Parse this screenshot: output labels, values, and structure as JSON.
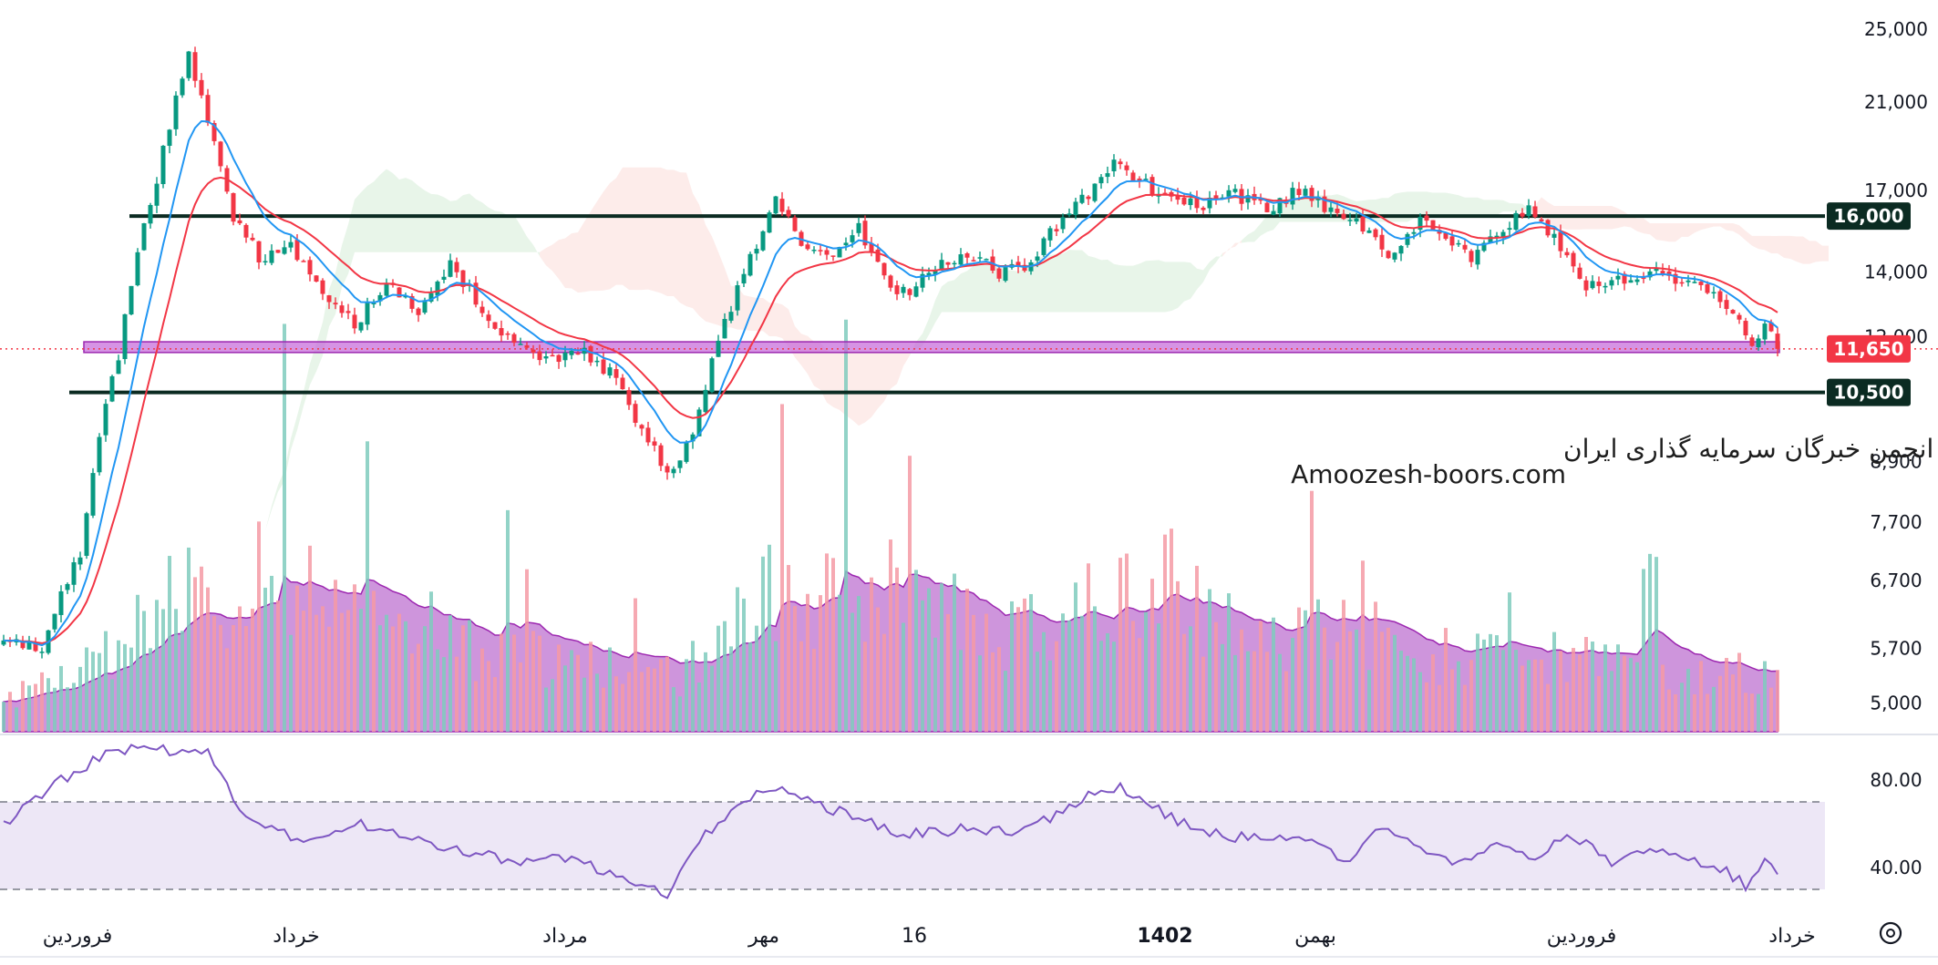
{
  "chart_data": {
    "type": "candlestick",
    "price_axis": {
      "scale": "log",
      "range": [
        4700,
        26000
      ],
      "ticks": [
        "25,000",
        "21,000",
        "17,000",
        "14,000",
        "12,000",
        "8,900",
        "7,700",
        "6,700",
        "5,700",
        "5,000"
      ],
      "tick_values": [
        25000,
        21000,
        17000,
        14000,
        12000,
        8900,
        7700,
        6700,
        5700,
        5000
      ]
    },
    "rsi_axis": {
      "range": [
        20,
        100
      ],
      "ticks": [
        "80.00",
        "40.00"
      ],
      "tick_values": [
        80,
        40
      ],
      "band": [
        30,
        70
      ]
    },
    "time_axis": {
      "labels": [
        "فروردین",
        "خرداد",
        "مرداد",
        "مهر",
        "16",
        "1402",
        "بهمن",
        "فروردین",
        "خرداد"
      ],
      "bold": [
        false,
        false,
        false,
        false,
        false,
        true,
        false,
        false,
        false
      ]
    },
    "levels": [
      {
        "label": "16,000",
        "value": 16000,
        "color": "#0b2b22"
      },
      {
        "label": "10,500",
        "value": 10500,
        "color": "#0b2b22"
      }
    ],
    "zone": {
      "low": 11550,
      "high": 11850,
      "color": "#c465d8"
    },
    "last_price": {
      "label": "11,650",
      "value": 11650,
      "color": "#f23645"
    },
    "colors": {
      "up": "#089981",
      "down": "#f23645",
      "ma_fast": "#2196f3",
      "ma_slow": "#f23645",
      "volume_ma_fill": "#b45cc9",
      "rsi": "#7e57c2",
      "rsi_band": "#ede7f6",
      "cloud_bull": "#e8f5e9",
      "cloud_bear": "#fdecea"
    },
    "anchors": [
      [
        0,
        5800
      ],
      [
        6,
        5650
      ],
      [
        12,
        7200
      ],
      [
        18,
        11500
      ],
      [
        24,
        17500
      ],
      [
        29,
        23500
      ],
      [
        32,
        20000
      ],
      [
        36,
        16000
      ],
      [
        40,
        14500
      ],
      [
        45,
        15000
      ],
      [
        50,
        13200
      ],
      [
        55,
        12400
      ],
      [
        60,
        13500
      ],
      [
        65,
        12800
      ],
      [
        70,
        14200
      ],
      [
        75,
        12900
      ],
      [
        80,
        11700
      ],
      [
        85,
        11300
      ],
      [
        90,
        11700
      ],
      [
        95,
        11000
      ],
      [
        100,
        9600
      ],
      [
        104,
        8600
      ],
      [
        108,
        9500
      ],
      [
        112,
        11800
      ],
      [
        116,
        14000
      ],
      [
        121,
        16500
      ],
      [
        125,
        15000
      ],
      [
        130,
        14500
      ],
      [
        134,
        15500
      ],
      [
        138,
        13800
      ],
      [
        142,
        13200
      ],
      [
        146,
        14200
      ],
      [
        151,
        14600
      ],
      [
        156,
        14000
      ],
      [
        161,
        14200
      ],
      [
        166,
        16000
      ],
      [
        171,
        17000
      ],
      [
        174,
        18500
      ],
      [
        178,
        17300
      ],
      [
        183,
        16800
      ],
      [
        188,
        16500
      ],
      [
        193,
        16800
      ],
      [
        198,
        16200
      ],
      [
        203,
        17000
      ],
      [
        208,
        16200
      ],
      [
        213,
        15500
      ],
      [
        218,
        14500
      ],
      [
        222,
        15800
      ],
      [
        226,
        15000
      ],
      [
        230,
        14500
      ],
      [
        234,
        15300
      ],
      [
        239,
        16200
      ],
      [
        244,
        14800
      ],
      [
        248,
        13600
      ],
      [
        253,
        13800
      ],
      [
        258,
        14000
      ],
      [
        263,
        13600
      ],
      [
        267,
        13300
      ],
      [
        271,
        12800
      ],
      [
        274,
        11800
      ],
      [
        276,
        12300
      ],
      [
        278,
        11650
      ]
    ],
    "volume_anchors": [
      [
        0,
        0.9
      ],
      [
        10,
        1.5
      ],
      [
        20,
        2.5
      ],
      [
        26,
        4.1
      ],
      [
        34,
        3.3
      ],
      [
        40,
        4.4
      ],
      [
        47,
        4.0
      ],
      [
        55,
        3.2
      ],
      [
        63,
        3.5
      ],
      [
        72,
        2.3
      ],
      [
        80,
        2.1
      ],
      [
        90,
        2.0
      ],
      [
        100,
        1.7
      ],
      [
        106,
        1.5
      ],
      [
        112,
        2.6
      ],
      [
        120,
        3.8
      ],
      [
        128,
        3.9
      ],
      [
        136,
        4.1
      ],
      [
        143,
        3.7
      ],
      [
        150,
        3.4
      ],
      [
        157,
        2.8
      ],
      [
        163,
        3.1
      ],
      [
        170,
        3.6
      ],
      [
        177,
        4.2
      ],
      [
        183,
        4.4
      ],
      [
        190,
        3.0
      ],
      [
        198,
        2.7
      ],
      [
        206,
        3.1
      ],
      [
        213,
        2.6
      ],
      [
        221,
        2.3
      ],
      [
        229,
        2.0
      ],
      [
        237,
        2.2
      ],
      [
        245,
        2.0
      ],
      [
        253,
        1.9
      ],
      [
        261,
        1.6
      ],
      [
        269,
        1.7
      ],
      [
        275,
        1.6
      ],
      [
        278,
        1.4
      ]
    ],
    "rsi_anchors": [
      [
        0,
        60
      ],
      [
        8,
        78
      ],
      [
        16,
        92
      ],
      [
        22,
        96
      ],
      [
        27,
        92
      ],
      [
        32,
        92
      ],
      [
        38,
        62
      ],
      [
        44,
        55
      ],
      [
        50,
        52
      ],
      [
        56,
        60
      ],
      [
        62,
        54
      ],
      [
        68,
        50
      ],
      [
        74,
        47
      ],
      [
        80,
        43
      ],
      [
        86,
        45
      ],
      [
        92,
        41
      ],
      [
        98,
        33
      ],
      [
        104,
        28
      ],
      [
        110,
        55
      ],
      [
        116,
        72
      ],
      [
        122,
        77
      ],
      [
        128,
        68
      ],
      [
        134,
        63
      ],
      [
        140,
        55
      ],
      [
        146,
        56
      ],
      [
        152,
        58
      ],
      [
        158,
        56
      ],
      [
        164,
        63
      ],
      [
        170,
        73
      ],
      [
        175,
        77
      ],
      [
        181,
        66
      ],
      [
        187,
        57
      ],
      [
        193,
        54
      ],
      [
        199,
        54
      ],
      [
        205,
        52
      ],
      [
        211,
        43
      ],
      [
        216,
        60
      ],
      [
        222,
        50
      ],
      [
        228,
        42
      ],
      [
        234,
        52
      ],
      [
        240,
        45
      ],
      [
        246,
        55
      ],
      [
        252,
        43
      ],
      [
        258,
        50
      ],
      [
        264,
        45
      ],
      [
        270,
        38
      ],
      [
        273,
        32
      ],
      [
        276,
        44
      ],
      [
        278,
        38
      ]
    ]
  },
  "watermark": {
    "line1": "انجمن خبرگان سرمایه گذاری ایران",
    "line2": "Amoozesh-boors.com"
  },
  "toolbar": {
    "settings_icon": "gear-icon"
  }
}
